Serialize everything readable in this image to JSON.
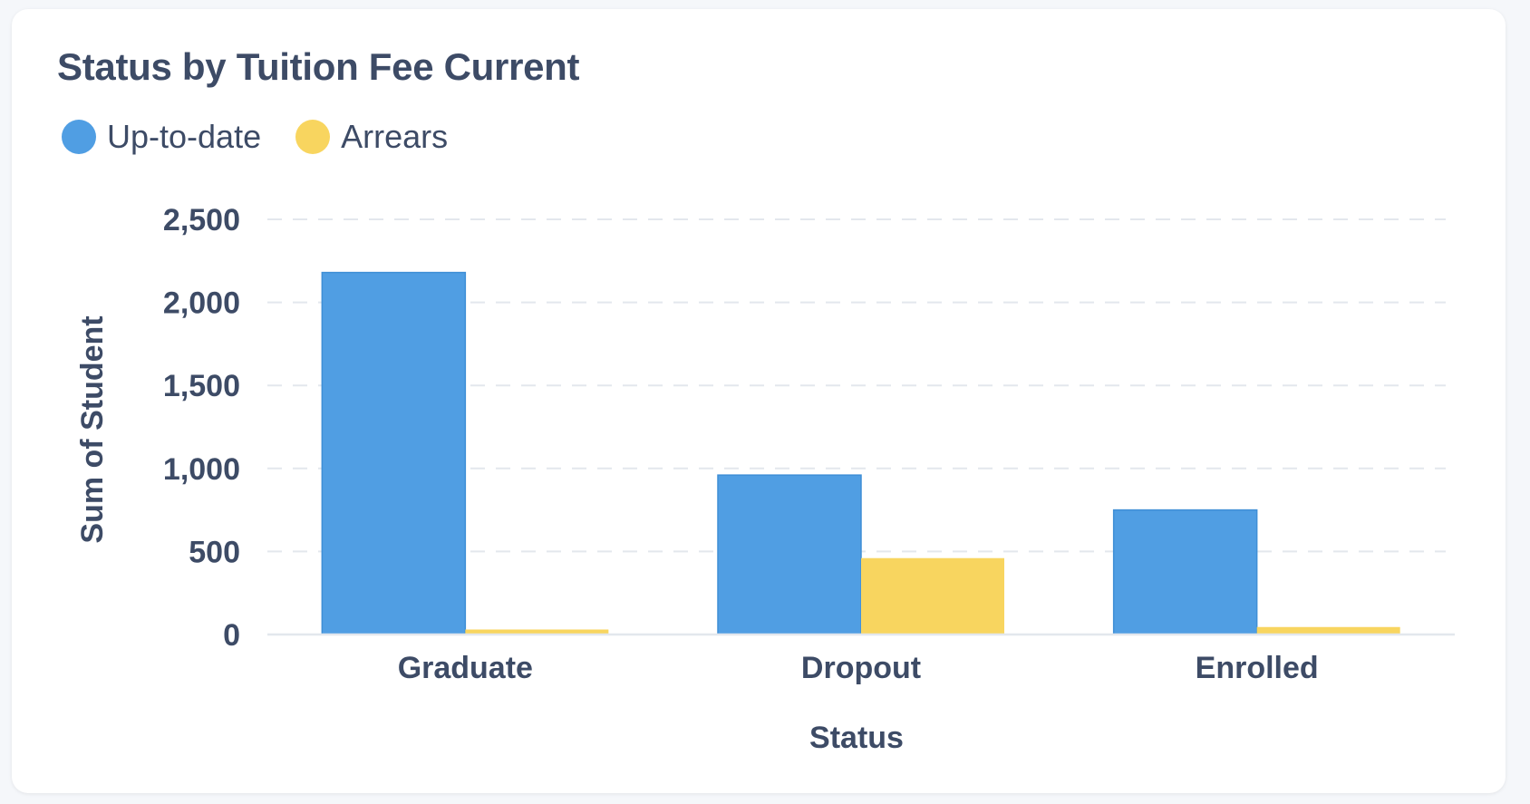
{
  "chart_data": {
    "type": "bar",
    "title": "Status by Tuition Fee Current",
    "xlabel": "Status",
    "ylabel": "Sum of Student",
    "categories": [
      "Graduate",
      "Dropout",
      "Enrolled"
    ],
    "series": [
      {
        "name": "Up-to-date",
        "color": "#509ee3",
        "values": [
          2180,
          960,
          750
        ]
      },
      {
        "name": "Arrears",
        "color": "#f8d55f",
        "values": [
          30,
          460,
          45
        ]
      }
    ],
    "ylim": [
      0,
      2500
    ],
    "yticks": [
      0,
      500,
      1000,
      1500,
      2000,
      2500
    ],
    "ytick_labels": [
      "0",
      "500",
      "1,000",
      "1,500",
      "2,000",
      "2,500"
    ],
    "grid": true,
    "legend_position": "top-left"
  }
}
